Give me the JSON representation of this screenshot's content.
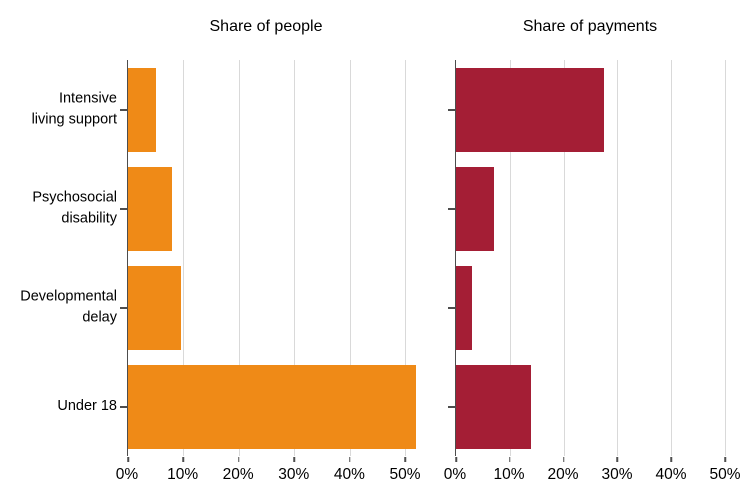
{
  "chart_data": {
    "type": "bar",
    "orientation": "horizontal",
    "categories": [
      "Intensive living support",
      "Psychosocial disability",
      "Developmental delay",
      "Under 18"
    ],
    "category_label_lines": [
      [
        "Intensive",
        "living support"
      ],
      [
        "Psychosocial",
        "disability"
      ],
      [
        "Developmental",
        "delay"
      ],
      [
        "Under 18"
      ]
    ],
    "x_tick_labels": [
      "0%",
      "10%",
      "20%",
      "30%",
      "40%",
      "50%"
    ],
    "xlim": [
      0,
      50
    ],
    "grid": true,
    "legend": "none",
    "panels": [
      {
        "title": "Share of people",
        "color": "#EF8A17",
        "values": [
          5,
          8,
          9.5,
          52
        ]
      },
      {
        "title": "Share of payments",
        "color": "#A41E35",
        "values": [
          27.5,
          7,
          3,
          14
        ]
      }
    ]
  }
}
